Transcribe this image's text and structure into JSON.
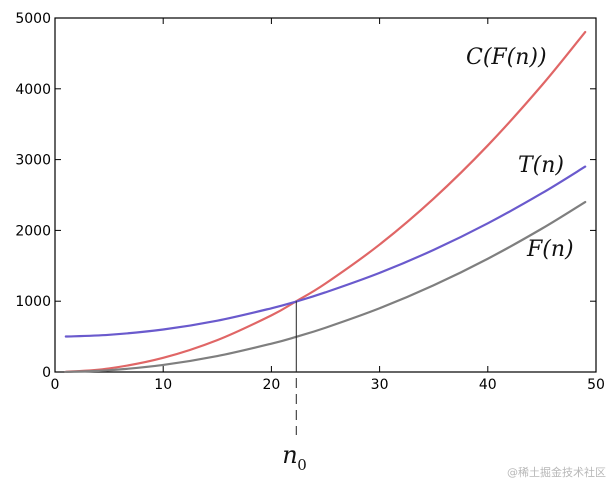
{
  "chart_data": {
    "type": "line",
    "xlim": [
      0,
      50
    ],
    "ylim": [
      0,
      5000
    ],
    "xticks": [
      0,
      10,
      20,
      30,
      40,
      50
    ],
    "yticks": [
      0,
      1000,
      2000,
      3000,
      4000,
      5000
    ],
    "grid": false,
    "series": [
      {
        "name": "C(F(n))",
        "color": "#e06666",
        "x": [
          1,
          5,
          10,
          15,
          20,
          22.3,
          25,
          30,
          35,
          40,
          45,
          49
        ],
        "y": [
          2,
          50,
          200,
          450,
          800,
          1000,
          1250,
          1800,
          2450,
          3200,
          4050,
          4802
        ]
      },
      {
        "name": "T(n)",
        "color": "#6a5acd",
        "x": [
          1,
          5,
          10,
          15,
          20,
          22.3,
          25,
          30,
          35,
          40,
          45,
          49
        ],
        "y": [
          501,
          525,
          600,
          725,
          900,
          995,
          1125,
          1400,
          1725,
          2100,
          2525,
          2901
        ]
      },
      {
        "name": "F(n)",
        "color": "#7f7f7f",
        "x": [
          1,
          5,
          10,
          15,
          20,
          22.3,
          25,
          30,
          35,
          40,
          45,
          49
        ],
        "y": [
          1,
          25,
          100,
          225,
          400,
          497,
          625,
          900,
          1225,
          1600,
          2025,
          2401
        ]
      }
    ],
    "annotations": {
      "curve_labels": [
        {
          "series": "C(F(n))",
          "text": "C(F(n))"
        },
        {
          "series": "T(n)",
          "text": "T(n)"
        },
        {
          "series": "F(n)",
          "text": "F(n)"
        }
      ],
      "crossover": {
        "x": 22.3,
        "y": 1000,
        "label": "n",
        "subscript": "0"
      }
    }
  },
  "watermark": "@稀土掘金技术社区"
}
